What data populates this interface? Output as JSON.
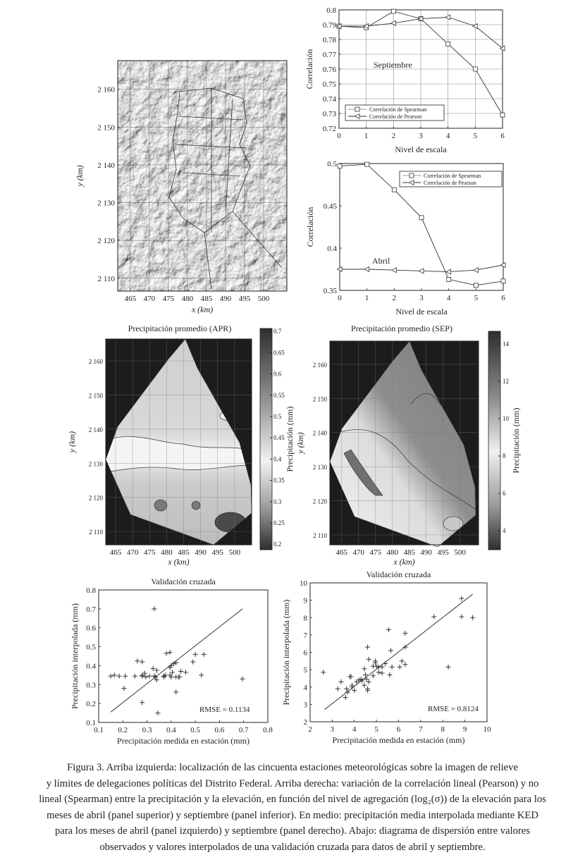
{
  "relief_map": {
    "xlabel": "x (km)",
    "ylabel": "y (km)",
    "xlim": [
      461.7,
      506.1
    ],
    "ylim": [
      2106.6,
      2167.6
    ],
    "xticks": [
      465,
      470,
      475,
      480,
      485,
      490,
      495,
      500
    ],
    "xtick_labels": [
      "465",
      "470",
      "475",
      "480",
      "485",
      "490",
      "495",
      "500"
    ],
    "yticks": [
      2110,
      2120,
      2130,
      2140,
      2150,
      2160
    ],
    "ytick_labels": [
      "2 110",
      "2 120",
      "2 130",
      "2 140",
      "2 150",
      "2 160"
    ]
  },
  "chart_data": [
    {
      "type": "line",
      "annotation": "Septiembre",
      "xlabel": "Nivel de escala",
      "ylabel": "Correlación",
      "x": [
        0,
        1,
        2,
        3,
        4,
        5,
        6
      ],
      "xlim": [
        0,
        6
      ],
      "ylim": [
        0.72,
        0.8
      ],
      "xticks": [
        0,
        1,
        2,
        3,
        4,
        5,
        6
      ],
      "yticks": [
        0.72,
        0.73,
        0.74,
        0.75,
        0.76,
        0.77,
        0.78,
        0.79,
        0.8
      ],
      "ytick_labels": [
        "0.72",
        "0.73",
        "0.74",
        "0.75",
        "0.76",
        "0.77",
        "0.78",
        "0.79",
        "0.8"
      ],
      "grid": true,
      "legend": "bottom-left",
      "series": [
        {
          "name": "Correlación de Spearman",
          "marker": "square",
          "values": [
            0.789,
            0.788,
            0.799,
            0.794,
            0.777,
            0.76,
            0.729
          ]
        },
        {
          "name": "Correlación de Pearson",
          "marker": "triangle-left",
          "values": [
            0.789,
            0.789,
            0.791,
            0.794,
            0.795,
            0.789,
            0.774
          ]
        }
      ]
    },
    {
      "type": "line",
      "annotation": "Abril",
      "xlabel": "Nivel de escala",
      "ylabel": "Correlación",
      "x": [
        0,
        1,
        2,
        3,
        4,
        5,
        6
      ],
      "xlim": [
        0,
        6
      ],
      "ylim": [
        0.35,
        0.5
      ],
      "xticks": [
        0,
        1,
        2,
        3,
        4,
        5,
        6
      ],
      "yticks": [
        0.35,
        0.4,
        0.45,
        0.5
      ],
      "ytick_labels": [
        "0.35",
        "0.4",
        "0.45",
        "0.5"
      ],
      "grid": false,
      "legend": "top-right",
      "series": [
        {
          "name": "Correlación de Spearman",
          "marker": "square",
          "values": [
            0.497,
            0.499,
            0.469,
            0.436,
            0.363,
            0.356,
            0.361
          ]
        },
        {
          "name": "Correlación de Pearson",
          "marker": "triangle-left",
          "values": [
            0.375,
            0.375,
            0.374,
            0.373,
            0.372,
            0.374,
            0.38
          ]
        }
      ]
    },
    {
      "type": "heatmap",
      "title": "Precipitación promedio (APR)",
      "xlabel": "x (km)",
      "ylabel": "y (km)",
      "colorbar_label": "Precipitación (mm)",
      "xlim": [
        462.1,
        505.0
      ],
      "ylim": [
        2106.1,
        2166.4
      ],
      "xticks": [
        465,
        470,
        475,
        480,
        485,
        490,
        495,
        500
      ],
      "xtick_labels": [
        "465",
        "470",
        "475",
        "480",
        "485",
        "490",
        "495",
        "500"
      ],
      "yticks": [
        2110,
        2120,
        2130,
        2140,
        2150,
        2160
      ],
      "ytick_labels": [
        "2 110",
        "2 120",
        "2 130",
        "2 140",
        "2 150",
        "2 160"
      ],
      "colorbar_range": [
        0.187,
        0.707
      ],
      "colorbar_ticks": [
        0.2,
        0.25,
        0.3,
        0.35,
        0.4,
        0.45,
        0.5,
        0.55,
        0.6,
        0.65,
        0.7
      ],
      "colorbar_tick_labels": [
        "0.2",
        "0.25",
        "0.3",
        "0.35",
        "0.4",
        "0.45",
        "0.5",
        "0.55",
        "0.6",
        "0.65",
        "0.7"
      ]
    },
    {
      "type": "heatmap",
      "title": "Precipitación promedio (SEP)",
      "xlabel": "x (km)",
      "ylabel": "y (km)",
      "colorbar_label": "Precipitación (mm)",
      "xlim": [
        461.5,
        505.5
      ],
      "ylim": [
        2107.1,
        2166.8
      ],
      "xticks": [
        465,
        470,
        475,
        480,
        485,
        490,
        495,
        500
      ],
      "xtick_labels": [
        "465",
        "470",
        "475",
        "480",
        "485",
        "490",
        "495",
        "500"
      ],
      "yticks": [
        2110,
        2120,
        2130,
        2140,
        2150,
        2160
      ],
      "ytick_labels": [
        "2 110",
        "2 120",
        "2 130",
        "2 140",
        "2 150",
        "2 160"
      ],
      "colorbar_range": [
        2.98,
        14.68
      ],
      "colorbar_ticks": [
        4,
        6,
        8,
        10,
        12,
        14
      ],
      "colorbar_tick_labels": [
        "4",
        "6",
        "8",
        "10",
        "12",
        "14"
      ]
    },
    {
      "type": "scatter",
      "title": "Validación cruzada",
      "xlabel": "Precipitación medida en estación (mm)",
      "ylabel": "Precipitación interpolada (mm)",
      "annotation": "RMSE = 0.1134",
      "xlim": [
        0.1,
        0.8
      ],
      "ylim": [
        0.1,
        0.8
      ],
      "xticks": [
        0.1,
        0.2,
        0.3,
        0.4,
        0.5,
        0.6,
        0.7,
        0.8
      ],
      "xtick_labels": [
        "0.1",
        "0.2",
        "0.3",
        "0.4",
        "0.5",
        "0.6",
        "0.7",
        "0.8"
      ],
      "yticks": [
        0.1,
        0.2,
        0.3,
        0.4,
        0.5,
        0.6,
        0.7,
        0.8
      ],
      "ytick_labels": [
        "0.1",
        "0.2",
        "0.3",
        "0.4",
        "0.5",
        "0.6",
        "0.7",
        "0.8"
      ],
      "fit_line": [
        [
          0.15,
          0.155
        ],
        [
          0.695,
          0.7
        ]
      ],
      "points": [
        [
          0.15,
          0.345
        ],
        [
          0.165,
          0.35
        ],
        [
          0.185,
          0.345
        ],
        [
          0.21,
          0.345
        ],
        [
          0.205,
          0.28
        ],
        [
          0.25,
          0.345
        ],
        [
          0.26,
          0.425
        ],
        [
          0.28,
          0.42
        ],
        [
          0.28,
          0.35
        ],
        [
          0.28,
          0.345
        ],
        [
          0.29,
          0.36
        ],
        [
          0.295,
          0.34
        ],
        [
          0.28,
          0.205
        ],
        [
          0.31,
          0.345
        ],
        [
          0.325,
          0.385
        ],
        [
          0.33,
          0.345
        ],
        [
          0.335,
          0.34
        ],
        [
          0.33,
          0.7
        ],
        [
          0.34,
          0.375
        ],
        [
          0.34,
          0.325
        ],
        [
          0.345,
          0.15
        ],
        [
          0.37,
          0.345
        ],
        [
          0.37,
          0.34
        ],
        [
          0.375,
          0.35
        ],
        [
          0.38,
          0.465
        ],
        [
          0.395,
          0.47
        ],
        [
          0.395,
          0.39
        ],
        [
          0.395,
          0.35
        ],
        [
          0.4,
          0.34
        ],
        [
          0.4,
          0.4
        ],
        [
          0.405,
          0.365
        ],
        [
          0.41,
          0.41
        ],
        [
          0.42,
          0.34
        ],
        [
          0.42,
          0.415
        ],
        [
          0.42,
          0.26
        ],
        [
          0.43,
          0.34
        ],
        [
          0.435,
          0.34
        ],
        [
          0.44,
          0.37
        ],
        [
          0.46,
          0.365
        ],
        [
          0.49,
          0.42
        ],
        [
          0.5,
          0.46
        ],
        [
          0.525,
          0.35
        ],
        [
          0.535,
          0.46
        ],
        [
          0.695,
          0.33
        ]
      ]
    },
    {
      "type": "scatter",
      "title": "Validación cruzada",
      "xlabel": "Precipitación medida en estación (mm)",
      "ylabel": "Precipitación interpolada (mm)",
      "annotation": "RMSE = 0.8124",
      "xlim": [
        2,
        10
      ],
      "ylim": [
        2,
        10
      ],
      "xticks": [
        2,
        3,
        4,
        5,
        6,
        7,
        8,
        9,
        10
      ],
      "xtick_labels": [
        "2",
        "3",
        "4",
        "5",
        "6",
        "7",
        "8",
        "9",
        "10"
      ],
      "yticks": [
        2,
        3,
        4,
        5,
        6,
        7,
        8,
        9,
        10
      ],
      "ytick_labels": [
        "2",
        "3",
        "4",
        "5",
        "6",
        "7",
        "8",
        "9",
        "10"
      ],
      "fit_line": [
        [
          2.65,
          2.7
        ],
        [
          9.35,
          9.35
        ]
      ],
      "points": [
        [
          2.6,
          4.85
        ],
        [
          3.25,
          3.9
        ],
        [
          3.4,
          4.3
        ],
        [
          3.6,
          3.4
        ],
        [
          3.65,
          3.9
        ],
        [
          3.7,
          3.7
        ],
        [
          3.8,
          4.6
        ],
        [
          3.85,
          4.6
        ],
        [
          3.9,
          4.0
        ],
        [
          3.9,
          4.1
        ],
        [
          4.0,
          3.8
        ],
        [
          4.1,
          4.3
        ],
        [
          4.2,
          4.4
        ],
        [
          4.3,
          4.45
        ],
        [
          4.35,
          4.35
        ],
        [
          4.45,
          4.1
        ],
        [
          4.45,
          5.05
        ],
        [
          4.5,
          4.7
        ],
        [
          4.55,
          4.45
        ],
        [
          4.6,
          3.8
        ],
        [
          4.6,
          3.9
        ],
        [
          4.6,
          6.3
        ],
        [
          4.65,
          4.3
        ],
        [
          4.65,
          5.6
        ],
        [
          4.85,
          5.2
        ],
        [
          4.85,
          4.65
        ],
        [
          4.95,
          5.4
        ],
        [
          4.95,
          5.5
        ],
        [
          5.0,
          5.2
        ],
        [
          5.1,
          4.85
        ],
        [
          5.1,
          5.15
        ],
        [
          5.25,
          5.15
        ],
        [
          5.25,
          4.8
        ],
        [
          5.4,
          5.35
        ],
        [
          5.55,
          7.3
        ],
        [
          5.6,
          4.7
        ],
        [
          5.65,
          6.1
        ],
        [
          5.7,
          5.15
        ],
        [
          6.05,
          5.15
        ],
        [
          6.15,
          5.5
        ],
        [
          6.3,
          7.1
        ],
        [
          6.3,
          5.3
        ],
        [
          6.3,
          6.3
        ],
        [
          7.6,
          8.05
        ],
        [
          8.25,
          5.15
        ],
        [
          8.85,
          9.1
        ],
        [
          8.85,
          8.05
        ],
        [
          9.35,
          8.0
        ]
      ]
    }
  ],
  "caption": {
    "lines": [
      "Figura 3. Arriba izquierda: localización de las cincuenta estaciones meteorológicas sobre la imagen de relieve",
      "y límites de delegaciones políticas del Distrito Federal. Arriba derecha: variación de la correlación lineal (Pearson) y no",
      "lineal (Spearman) entre la precipitación y la elevación, en función del nivel de agregación (log₂(σ)) de la elevación para los",
      "meses de abril (panel superior) y septiembre (panel inferior). En medio: precipitación media interpolada mediante KED",
      "para los meses de abril (panel izquierdo) y septiembre (panel derecho).  Abajo: diagrama de dispersión entre valores",
      "observados y valores interpolados de una validación cruzada para datos de abril y septiembre."
    ]
  }
}
